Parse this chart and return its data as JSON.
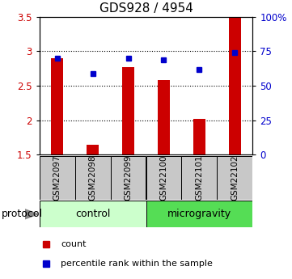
{
  "title": "GDS928 / 4954",
  "samples": [
    "GSM22097",
    "GSM22098",
    "GSM22099",
    "GSM22100",
    "GSM22101",
    "GSM22102"
  ],
  "bar_heights": [
    2.9,
    1.65,
    2.77,
    2.58,
    2.02,
    3.5
  ],
  "bar_bottom": 1.5,
  "blue_dot_left": [
    2.9,
    2.68,
    2.9,
    2.87,
    2.74,
    2.98
  ],
  "ylim_left": [
    1.5,
    3.5
  ],
  "ylim_right": [
    0,
    100
  ],
  "yticks_left": [
    1.5,
    2.0,
    2.5,
    3.0,
    3.5
  ],
  "ytick_labels_left": [
    "1.5",
    "2",
    "2.5",
    "3",
    "3.5"
  ],
  "yticks_right": [
    0,
    25,
    50,
    75,
    100
  ],
  "ytick_labels_right": [
    "0",
    "25",
    "50",
    "75",
    "100%"
  ],
  "hgrid_vals": [
    2.0,
    2.5,
    3.0
  ],
  "bar_color": "#cc0000",
  "dot_color": "#0000cc",
  "control_color": "#ccffcc",
  "microgravity_color": "#55dd55",
  "protocol_label": "protocol",
  "control_label": "control",
  "microgravity_label": "microgravity",
  "legend_count": "count",
  "legend_percentile": "percentile rank within the sample",
  "left_axis_color": "#cc0000",
  "right_axis_color": "#0000cc",
  "gray_color": "#c8c8c8",
  "title_fontsize": 11,
  "tick_fontsize": 8.5,
  "sample_fontsize": 7.5,
  "protocol_fontsize": 9,
  "legend_fontsize": 8
}
